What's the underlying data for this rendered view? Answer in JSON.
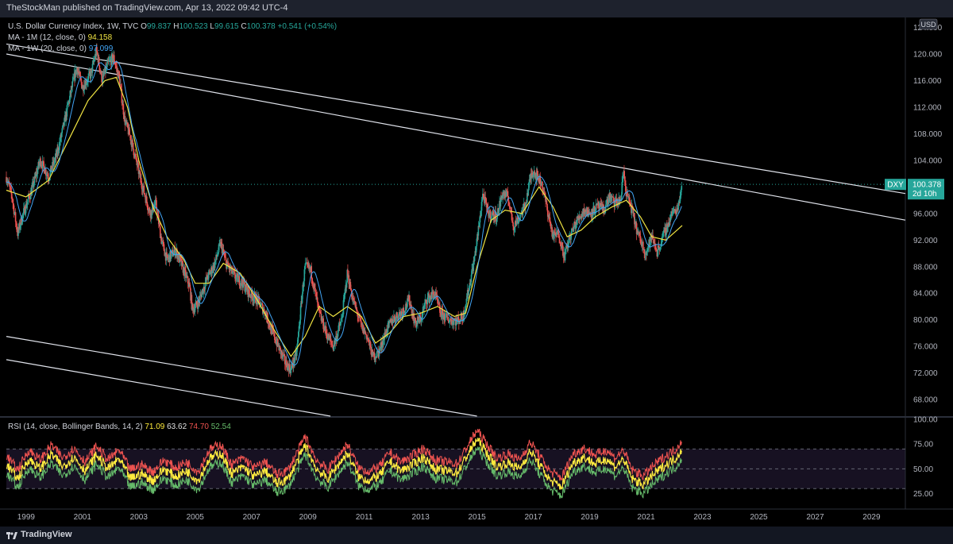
{
  "header": {
    "published": "TheStockMan published on TradingView.com, Apr 13, 2022 09:42 UTC-4"
  },
  "footer": {
    "brand": "TradingView"
  },
  "legend": {
    "symbol": "U.S. Dollar Currency Index, 1W, TVC",
    "open_label": "O",
    "open": "99.837",
    "high_label": "H",
    "high": "100.523",
    "low_label": "L",
    "low": "99.615",
    "close_label": "C",
    "close": "100.378",
    "change": "+0.541 (+0.54%)",
    "ma1_label": "MA - 1M (12, close, 0)",
    "ma1_value": "94.158",
    "ma2_label": "MA - 1W (20, close, 0)",
    "ma2_value": "97.099",
    "rsi_label": "RSI (14, close, Bollinger Bands, 14, 2)",
    "rsi_v1": "71.09",
    "rsi_v2": "63.62",
    "rsi_v3": "74.70",
    "rsi_v4": "52.54"
  },
  "price_tag": {
    "ticker": "DXY",
    "price": "100.378",
    "countdown": "2d 10h"
  },
  "currency": "USD",
  "colors": {
    "up": "#26a69a",
    "down": "#ef5350",
    "ma1": "#f0e442",
    "ma2": "#42a5f5",
    "rsi": "#ffeb3b",
    "bb_upper": "#ef5350",
    "bb_lower": "#66bb6a",
    "tag": "#26a69a"
  },
  "chart_data": {
    "type": "candlestick",
    "x_ticks": [
      "1999",
      "2001",
      "2003",
      "2005",
      "2007",
      "2009",
      "2011",
      "2013",
      "2015",
      "2017",
      "2019",
      "2021",
      "2023",
      "2025",
      "2027",
      "2029"
    ],
    "x_range": [
      1998.3,
      2030.2
    ],
    "y_ticks": [
      "124.000",
      "120.000",
      "116.000",
      "112.000",
      "108.000",
      "104.000",
      "100.000",
      "96.000",
      "92.000",
      "88.000",
      "84.000",
      "80.000",
      "76.000",
      "72.000",
      "68.000"
    ],
    "y_range": [
      65.5,
      125.5
    ],
    "price_path": [
      [
        1998.3,
        101.5
      ],
      [
        1998.5,
        98.5
      ],
      [
        1998.7,
        93.0
      ],
      [
        1998.9,
        96.0
      ],
      [
        1999.2,
        99.5
      ],
      [
        1999.5,
        104.0
      ],
      [
        1999.8,
        101.5
      ],
      [
        2000.1,
        105.0
      ],
      [
        2000.4,
        110.5
      ],
      [
        2000.6,
        114.5
      ],
      [
        2000.8,
        118.0
      ],
      [
        2001.0,
        115.0
      ],
      [
        2001.3,
        117.0
      ],
      [
        2001.5,
        120.5
      ],
      [
        2001.7,
        116.0
      ],
      [
        2001.9,
        118.5
      ],
      [
        2002.1,
        119.5
      ],
      [
        2002.3,
        116.5
      ],
      [
        2002.5,
        110.0
      ],
      [
        2002.7,
        107.5
      ],
      [
        2002.9,
        104.0
      ],
      [
        2003.1,
        100.5
      ],
      [
        2003.4,
        96.0
      ],
      [
        2003.6,
        97.5
      ],
      [
        2003.8,
        92.0
      ],
      [
        2004.0,
        89.0
      ],
      [
        2004.3,
        90.5
      ],
      [
        2004.5,
        88.5
      ],
      [
        2004.8,
        85.0
      ],
      [
        2004.9,
        81.5
      ],
      [
        2005.1,
        82.5
      ],
      [
        2005.4,
        86.0
      ],
      [
        2005.7,
        88.5
      ],
      [
        2005.9,
        91.5
      ],
      [
        2006.1,
        88.5
      ],
      [
        2006.4,
        86.5
      ],
      [
        2006.7,
        85.5
      ],
      [
        2006.9,
        84.0
      ],
      [
        2007.2,
        83.0
      ],
      [
        2007.5,
        81.0
      ],
      [
        2007.7,
        78.5
      ],
      [
        2007.9,
        76.5
      ],
      [
        2008.2,
        73.5
      ],
      [
        2008.4,
        72.5
      ],
      [
        2008.6,
        75.0
      ],
      [
        2008.8,
        84.0
      ],
      [
        2008.9,
        88.0
      ],
      [
        2009.1,
        87.5
      ],
      [
        2009.4,
        81.0
      ],
      [
        2009.7,
        77.5
      ],
      [
        2009.9,
        76.0
      ],
      [
        2010.2,
        80.0
      ],
      [
        2010.4,
        87.0
      ],
      [
        2010.6,
        83.0
      ],
      [
        2010.9,
        79.0
      ],
      [
        2011.1,
        77.5
      ],
      [
        2011.3,
        74.5
      ],
      [
        2011.5,
        75.0
      ],
      [
        2011.8,
        78.5
      ],
      [
        2012.0,
        80.0
      ],
      [
        2012.4,
        81.5
      ],
      [
        2012.6,
        83.0
      ],
      [
        2012.8,
        79.5
      ],
      [
        2013.0,
        80.0
      ],
      [
        2013.2,
        83.0
      ],
      [
        2013.5,
        84.0
      ],
      [
        2013.7,
        81.0
      ],
      [
        2014.0,
        80.0
      ],
      [
        2014.3,
        79.8
      ],
      [
        2014.5,
        80.5
      ],
      [
        2014.7,
        84.5
      ],
      [
        2014.9,
        89.0
      ],
      [
        2015.1,
        95.0
      ],
      [
        2015.2,
        99.0
      ],
      [
        2015.4,
        96.0
      ],
      [
        2015.7,
        95.5
      ],
      [
        2015.9,
        99.0
      ],
      [
        2016.1,
        98.5
      ],
      [
        2016.3,
        94.0
      ],
      [
        2016.5,
        95.5
      ],
      [
        2016.7,
        97.0
      ],
      [
        2016.9,
        101.5
      ],
      [
        2017.0,
        102.5
      ],
      [
        2017.3,
        100.5
      ],
      [
        2017.5,
        96.5
      ],
      [
        2017.7,
        92.5
      ],
      [
        2017.9,
        93.0
      ],
      [
        2018.1,
        89.5
      ],
      [
        2018.3,
        92.5
      ],
      [
        2018.5,
        94.5
      ],
      [
        2018.8,
        96.5
      ],
      [
        2019.0,
        96.0
      ],
      [
        2019.3,
        97.0
      ],
      [
        2019.5,
        96.5
      ],
      [
        2019.7,
        98.5
      ],
      [
        2019.9,
        97.5
      ],
      [
        2020.1,
        98.0
      ],
      [
        2020.2,
        102.5
      ],
      [
        2020.3,
        99.0
      ],
      [
        2020.5,
        96.5
      ],
      [
        2020.7,
        93.0
      ],
      [
        2020.9,
        91.0
      ],
      [
        2021.0,
        90.0
      ],
      [
        2021.2,
        92.5
      ],
      [
        2021.4,
        90.2
      ],
      [
        2021.6,
        92.5
      ],
      [
        2021.8,
        94.5
      ],
      [
        2021.9,
        96.0
      ],
      [
        2022.1,
        96.5
      ],
      [
        2022.28,
        100.4
      ]
    ],
    "ma_slow_path": [
      [
        1998.3,
        99.5
      ],
      [
        1999.0,
        98.5
      ],
      [
        1999.8,
        101.0
      ],
      [
        2000.5,
        107.0
      ],
      [
        2001.2,
        113.0
      ],
      [
        2001.8,
        116.0
      ],
      [
        2002.2,
        116.5
      ],
      [
        2002.6,
        112.0
      ],
      [
        2003.0,
        104.0
      ],
      [
        2003.5,
        97.0
      ],
      [
        2004.0,
        92.5
      ],
      [
        2004.6,
        89.0
      ],
      [
        2005.0,
        85.5
      ],
      [
        2005.5,
        85.5
      ],
      [
        2006.0,
        88.5
      ],
      [
        2006.6,
        87.0
      ],
      [
        2007.2,
        83.0
      ],
      [
        2007.8,
        78.5
      ],
      [
        2008.4,
        74.5
      ],
      [
        2008.9,
        77.5
      ],
      [
        2009.4,
        82.0
      ],
      [
        2009.9,
        80.5
      ],
      [
        2010.4,
        82.0
      ],
      [
        2010.9,
        80.5
      ],
      [
        2011.4,
        76.5
      ],
      [
        2011.9,
        78.0
      ],
      [
        2012.4,
        80.5
      ],
      [
        2013.0,
        81.0
      ],
      [
        2013.6,
        82.0
      ],
      [
        2014.2,
        80.5
      ],
      [
        2014.6,
        81.0
      ],
      [
        2015.0,
        88.0
      ],
      [
        2015.5,
        95.0
      ],
      [
        2016.0,
        96.5
      ],
      [
        2016.6,
        96.0
      ],
      [
        2017.2,
        100.0
      ],
      [
        2017.7,
        97.0
      ],
      [
        2018.2,
        92.5
      ],
      [
        2018.7,
        93.5
      ],
      [
        2019.2,
        95.5
      ],
      [
        2019.8,
        97.0
      ],
      [
        2020.3,
        98.0
      ],
      [
        2020.8,
        95.5
      ],
      [
        2021.2,
        92.5
      ],
      [
        2021.7,
        92.0
      ],
      [
        2022.1,
        93.5
      ],
      [
        2022.28,
        94.2
      ]
    ],
    "trend_lines": [
      [
        [
          1998.3,
          121.5
        ],
        [
          2030.2,
          99.0
        ]
      ],
      [
        [
          1998.3,
          120.0
        ],
        [
          2030.2,
          95.0
        ]
      ],
      [
        [
          1998.3,
          77.5
        ],
        [
          2015.0,
          65.5
        ]
      ],
      [
        [
          1998.3,
          74.0
        ],
        [
          2009.8,
          65.5
        ]
      ]
    ],
    "last_price": 100.378,
    "rsi": {
      "y_ticks": [
        "100.00",
        "75.00",
        "50.00",
        "25.00"
      ],
      "y_range": [
        15,
        100
      ],
      "levels": [
        70,
        50,
        30
      ],
      "path": [
        [
          1998.3,
          55
        ],
        [
          1998.7,
          40
        ],
        [
          1999.1,
          60
        ],
        [
          1999.5,
          50
        ],
        [
          1999.9,
          65
        ],
        [
          2000.3,
          52
        ],
        [
          2000.7,
          62
        ],
        [
          2001.1,
          48
        ],
        [
          2001.5,
          64
        ],
        [
          2001.9,
          50
        ],
        [
          2002.3,
          60
        ],
        [
          2002.7,
          40
        ],
        [
          2003.1,
          45
        ],
        [
          2003.5,
          38
        ],
        [
          2003.9,
          50
        ],
        [
          2004.3,
          42
        ],
        [
          2004.7,
          48
        ],
        [
          2005.1,
          38
        ],
        [
          2005.5,
          60
        ],
        [
          2005.9,
          66
        ],
        [
          2006.3,
          45
        ],
        [
          2006.7,
          52
        ],
        [
          2007.1,
          42
        ],
        [
          2007.5,
          48
        ],
        [
          2007.9,
          35
        ],
        [
          2008.3,
          40
        ],
        [
          2008.7,
          62
        ],
        [
          2008.9,
          74
        ],
        [
          2009.3,
          50
        ],
        [
          2009.7,
          40
        ],
        [
          2010.1,
          55
        ],
        [
          2010.4,
          66
        ],
        [
          2010.8,
          42
        ],
        [
          2011.2,
          38
        ],
        [
          2011.6,
          45
        ],
        [
          2011.9,
          58
        ],
        [
          2012.3,
          48
        ],
        [
          2012.7,
          54
        ],
        [
          2013.1,
          62
        ],
        [
          2013.5,
          50
        ],
        [
          2013.9,
          48
        ],
        [
          2014.3,
          46
        ],
        [
          2014.7,
          66
        ],
        [
          2015.0,
          80
        ],
        [
          2015.3,
          68
        ],
        [
          2015.7,
          52
        ],
        [
          2016.1,
          56
        ],
        [
          2016.5,
          50
        ],
        [
          2016.9,
          68
        ],
        [
          2017.2,
          55
        ],
        [
          2017.6,
          38
        ],
        [
          2018.0,
          32
        ],
        [
          2018.4,
          56
        ],
        [
          2018.8,
          62
        ],
        [
          2019.2,
          55
        ],
        [
          2019.6,
          60
        ],
        [
          2019.9,
          52
        ],
        [
          2020.2,
          60
        ],
        [
          2020.5,
          40
        ],
        [
          2020.9,
          34
        ],
        [
          2021.3,
          45
        ],
        [
          2021.6,
          52
        ],
        [
          2021.9,
          58
        ],
        [
          2022.1,
          62
        ],
        [
          2022.28,
          71.09
        ]
      ]
    }
  }
}
